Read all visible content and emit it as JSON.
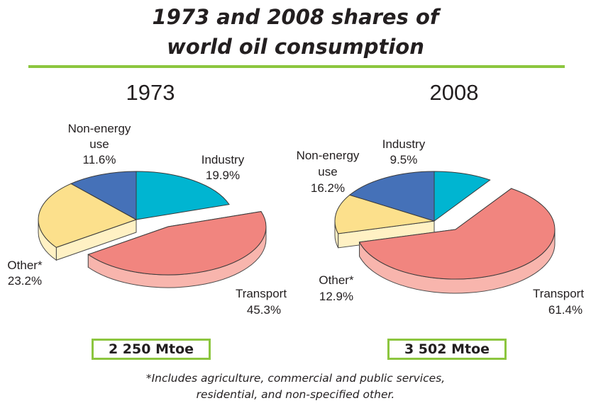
{
  "title_line1": "1973 and 2008 shares of",
  "title_line2": "world oil consumption",
  "footnote_line1": "*Includes agriculture, commercial and public services,",
  "footnote_line2": "residential, and non-specified other.",
  "chart_data": [
    {
      "type": "pie",
      "title": "1973",
      "total_label": "2 250 Mtoe",
      "slices": [
        {
          "name": "Industry",
          "value": 19.9,
          "label": "19.9%",
          "top_color": "#00b5d1",
          "side_color": "#9dd9e6"
        },
        {
          "name": "Transport",
          "value": 45.3,
          "label": "45.3%",
          "top_color": "#f1857f",
          "side_color": "#f8b5ad"
        },
        {
          "name": "Other*",
          "value": 23.2,
          "label": "23.2%",
          "top_color": "#fce08c",
          "side_color": "#fff1c4"
        },
        {
          "name": "Non-energy use",
          "value": 11.6,
          "label": "11.6%",
          "top_color": "#4571b8",
          "side_color": "#2f4f8a"
        }
      ]
    },
    {
      "type": "pie",
      "title": "2008",
      "total_label": "3 502 Mtoe",
      "slices": [
        {
          "name": "Industry",
          "value": 9.5,
          "label": "9.5%",
          "top_color": "#00b5d1",
          "side_color": "#9dd9e6"
        },
        {
          "name": "Transport",
          "value": 61.4,
          "label": "61.4%",
          "top_color": "#f1857f",
          "side_color": "#f8b5ad"
        },
        {
          "name": "Other*",
          "value": 12.9,
          "label": "12.9%",
          "top_color": "#fce08c",
          "side_color": "#fff1c4"
        },
        {
          "name": "Non-energy use",
          "value": 16.2,
          "label": "16.2%",
          "top_color": "#4571b8",
          "side_color": "#2f4f8a"
        }
      ]
    }
  ]
}
